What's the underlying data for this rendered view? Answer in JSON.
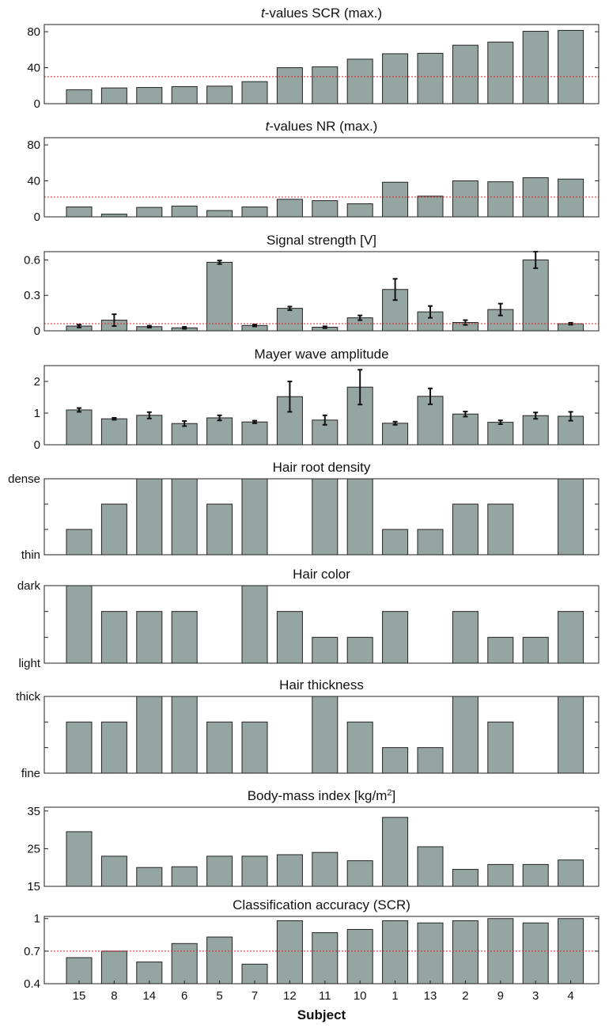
{
  "subjects": [
    "15",
    "8",
    "14",
    "6",
    "5",
    "7",
    "12",
    "11",
    "10",
    "1",
    "13",
    "2",
    "9",
    "3",
    "4"
  ],
  "xlabel": "Subject",
  "chart_data": [
    {
      "type": "bar",
      "title_prefix": "t",
      "title": "-values SCR (max.)",
      "ylim": [
        0,
        88
      ],
      "yticks": [
        {
          "v": 0,
          "label": "0"
        },
        {
          "v": 40,
          "label": "40"
        },
        {
          "v": 80,
          "label": "80"
        }
      ],
      "values": [
        15.5,
        17.5,
        18,
        19,
        19.5,
        24.5,
        40,
        41,
        49.5,
        55.5,
        56,
        65,
        68.5,
        80.5,
        81.5
      ],
      "threshold": 30
    },
    {
      "type": "bar",
      "title_prefix": "t",
      "title": "-values NR (max.)",
      "ylim": [
        0,
        88
      ],
      "yticks": [
        {
          "v": 0,
          "label": "0"
        },
        {
          "v": 40,
          "label": "40"
        },
        {
          "v": 80,
          "label": "80"
        }
      ],
      "values": [
        11,
        3,
        10.5,
        12,
        7,
        11,
        19.5,
        18,
        14.5,
        38.5,
        23,
        40,
        39,
        43.5,
        42
      ],
      "threshold": 22
    },
    {
      "type": "bar",
      "title": "Signal strength [V]",
      "ylim": [
        0,
        0.67
      ],
      "yticks": [
        {
          "v": 0,
          "label": "0"
        },
        {
          "v": 0.3,
          "label": "0.3"
        },
        {
          "v": 0.6,
          "label": "0.6"
        }
      ],
      "values": [
        0.04,
        0.09,
        0.035,
        0.025,
        0.58,
        0.045,
        0.19,
        0.03,
        0.11,
        0.35,
        0.16,
        0.07,
        0.18,
        0.6,
        0.06
      ],
      "errors": [
        0.012,
        0.05,
        0.008,
        0.008,
        0.015,
        0.008,
        0.015,
        0.008,
        0.02,
        0.09,
        0.05,
        0.02,
        0.05,
        0.07,
        0.008
      ],
      "threshold": 0.06
    },
    {
      "type": "bar",
      "title": "Mayer wave amplitude",
      "ylim": [
        0,
        2.5
      ],
      "yticks": [
        {
          "v": 0,
          "label": "0"
        },
        {
          "v": 1,
          "label": "1"
        },
        {
          "v": 2,
          "label": "2"
        }
      ],
      "values": [
        1.1,
        0.82,
        0.93,
        0.67,
        0.85,
        0.72,
        1.52,
        0.78,
        1.82,
        0.68,
        1.53,
        0.97,
        0.71,
        0.92,
        0.9
      ],
      "errors": [
        0.06,
        0.03,
        0.1,
        0.08,
        0.08,
        0.04,
        0.48,
        0.15,
        0.55,
        0.05,
        0.25,
        0.08,
        0.06,
        0.1,
        0.14
      ]
    },
    {
      "type": "bar",
      "title": "Hair root density",
      "ylim": [
        0,
        3
      ],
      "yticks": [
        {
          "v": 0,
          "label": "thin"
        },
        {
          "v": 1,
          "label": ""
        },
        {
          "v": 2,
          "label": ""
        },
        {
          "v": 3,
          "label": "dense"
        }
      ],
      "values": [
        1,
        2,
        3,
        3,
        2,
        3,
        0,
        3,
        3,
        1,
        1,
        2,
        2,
        0,
        3
      ]
    },
    {
      "type": "bar",
      "title": "Hair color",
      "ylim": [
        0,
        3
      ],
      "yticks": [
        {
          "v": 0,
          "label": "light"
        },
        {
          "v": 1,
          "label": ""
        },
        {
          "v": 2,
          "label": ""
        },
        {
          "v": 3,
          "label": "dark"
        }
      ],
      "values": [
        3,
        2,
        2,
        2,
        0,
        3,
        2,
        1,
        1,
        2,
        0,
        2,
        1,
        1,
        2
      ]
    },
    {
      "type": "bar",
      "title": "Hair thickness",
      "ylim": [
        0,
        3
      ],
      "yticks": [
        {
          "v": 0,
          "label": "fine"
        },
        {
          "v": 1,
          "label": ""
        },
        {
          "v": 2,
          "label": ""
        },
        {
          "v": 3,
          "label": "thick"
        }
      ],
      "values": [
        2,
        2,
        3,
        3,
        2,
        2,
        0,
        3,
        2,
        1,
        1,
        3,
        2,
        0,
        3
      ]
    },
    {
      "type": "bar",
      "title": "Body-mass index [kg/m",
      "title_sup": "2",
      "title_suffix": "]",
      "ylim": [
        15,
        36
      ],
      "yticks": [
        {
          "v": 15,
          "label": "15"
        },
        {
          "v": 25,
          "label": "25"
        },
        {
          "v": 35,
          "label": "35"
        }
      ],
      "values": [
        29.5,
        23,
        20,
        20.2,
        23,
        23,
        23.4,
        24,
        21.8,
        33.3,
        25.5,
        19.5,
        20.8,
        20.8,
        22
      ]
    },
    {
      "type": "bar",
      "title": "Classification accuracy (SCR)",
      "ylim": [
        0.4,
        1.02
      ],
      "yticks": [
        {
          "v": 0.4,
          "label": "0.4"
        },
        {
          "v": 0.7,
          "label": "0.7"
        },
        {
          "v": 1,
          "label": "1"
        }
      ],
      "values": [
        0.64,
        0.7,
        0.6,
        0.77,
        0.83,
        0.58,
        0.98,
        0.87,
        0.9,
        0.98,
        0.96,
        0.98,
        1.0,
        0.96,
        1.0
      ],
      "threshold": 0.7
    }
  ]
}
